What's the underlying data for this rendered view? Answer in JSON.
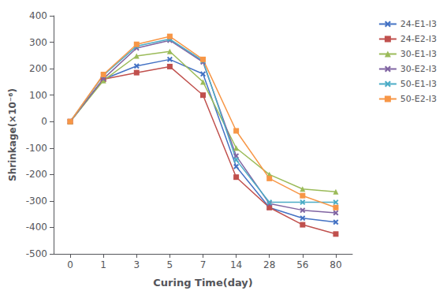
{
  "chart_data": {
    "type": "line",
    "xlabel": "Curing Time(day)",
    "ylabel": "Shrinkage(×10⁻⁶)",
    "categories": [
      "0",
      "1",
      "3",
      "5",
      "7",
      "14",
      "28",
      "56",
      "80"
    ],
    "series": [
      {
        "name": "24-E1-I3",
        "color": "#4472C4",
        "marker": "x",
        "values": [
          0,
          160,
          210,
          235,
          180,
          -170,
          -325,
          -365,
          -380
        ]
      },
      {
        "name": "24-E2-I3",
        "color": "#C0504D",
        "marker": "s",
        "values": [
          0,
          160,
          185,
          208,
          100,
          -210,
          -325,
          -390,
          -425
        ]
      },
      {
        "name": "30-E1-I3",
        "color": "#9BBB59",
        "marker": "^",
        "values": [
          0,
          155,
          248,
          265,
          150,
          -100,
          -200,
          -255,
          -265
        ]
      },
      {
        "name": "30-E2-I3",
        "color": "#8064A2",
        "marker": "x",
        "values": [
          0,
          162,
          278,
          307,
          225,
          -130,
          -310,
          -335,
          -345
        ]
      },
      {
        "name": "50-E1-I3",
        "color": "#4BACC6",
        "marker": "x",
        "values": [
          0,
          175,
          285,
          312,
          230,
          -145,
          -305,
          -305,
          -305
        ]
      },
      {
        "name": "50-E2-I3",
        "color": "#F79646",
        "marker": "s",
        "values": [
          0,
          178,
          292,
          322,
          235,
          -35,
          -215,
          -280,
          -325
        ]
      }
    ],
    "ylim": [
      -500,
      400
    ],
    "yticks": [
      -500,
      -400,
      -300,
      -200,
      -100,
      0,
      100,
      200,
      300,
      400
    ],
    "grid": false,
    "legend": "upper right"
  }
}
